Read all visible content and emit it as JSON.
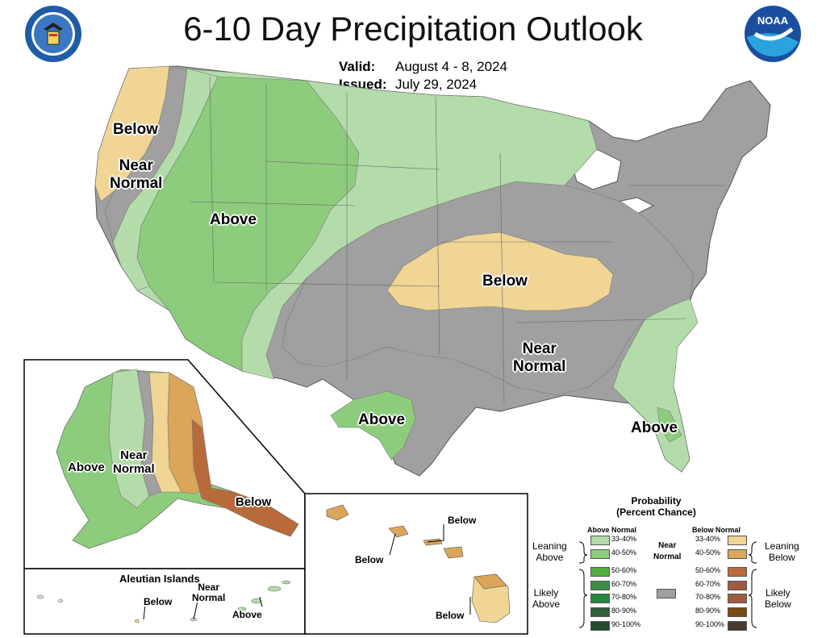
{
  "title": "6-10 Day Precipitation Outlook",
  "valid_label": "Valid:",
  "valid_value": "August 4 - 8, 2024",
  "issued_label": "Issued:",
  "issued_value": "July 29, 2024",
  "logos": {
    "left": "department-of-commerce-seal",
    "right": "noaa-logo",
    "noaa_text": "NOAA"
  },
  "conus_labels": {
    "below_west": "Below",
    "near_normal_west": "Near\nNormal",
    "above_west": "Above",
    "below_central": "Below",
    "near_normal_south": "Near\nNormal",
    "above_texas": "Above",
    "above_florida": "Above"
  },
  "alaska_labels": {
    "above": "Above",
    "near_normal": "Near\nNormal",
    "below": "Below"
  },
  "aleutian": {
    "title": "Aleutian Islands",
    "below": "Below",
    "near_normal": "Near\nNormal",
    "above": "Above"
  },
  "hawaii_labels": {
    "below_1": "Below",
    "below_2": "Below",
    "below_3": "Below"
  },
  "legend": {
    "title": "Probability\n(Percent Chance)",
    "above_header": "Above Normal",
    "below_header": "Below Normal",
    "near_normal": "Near\nNormal",
    "leaning_above": "Leaning\nAbove",
    "likely_above": "Likely\nAbove",
    "leaning_below": "Leaning\nBelow",
    "likely_below": "Likely\nBelow",
    "ranges": [
      "33-40%",
      "40-50%",
      "50-60%",
      "60-70%",
      "70-80%",
      "80-90%",
      "90-100%"
    ],
    "above_colors": [
      "#b3dcaa",
      "#8dcc7c",
      "#4fae3f",
      "#3a8f44",
      "#26873c",
      "#2e5e3a",
      "#254a2c"
    ],
    "below_colors": [
      "#f0d595",
      "#dba55a",
      "#b96a3a",
      "#a15a3d",
      "#9e5c3f",
      "#7a4a14",
      "#4a3a30"
    ],
    "near_color": "#a0a0a0"
  }
}
